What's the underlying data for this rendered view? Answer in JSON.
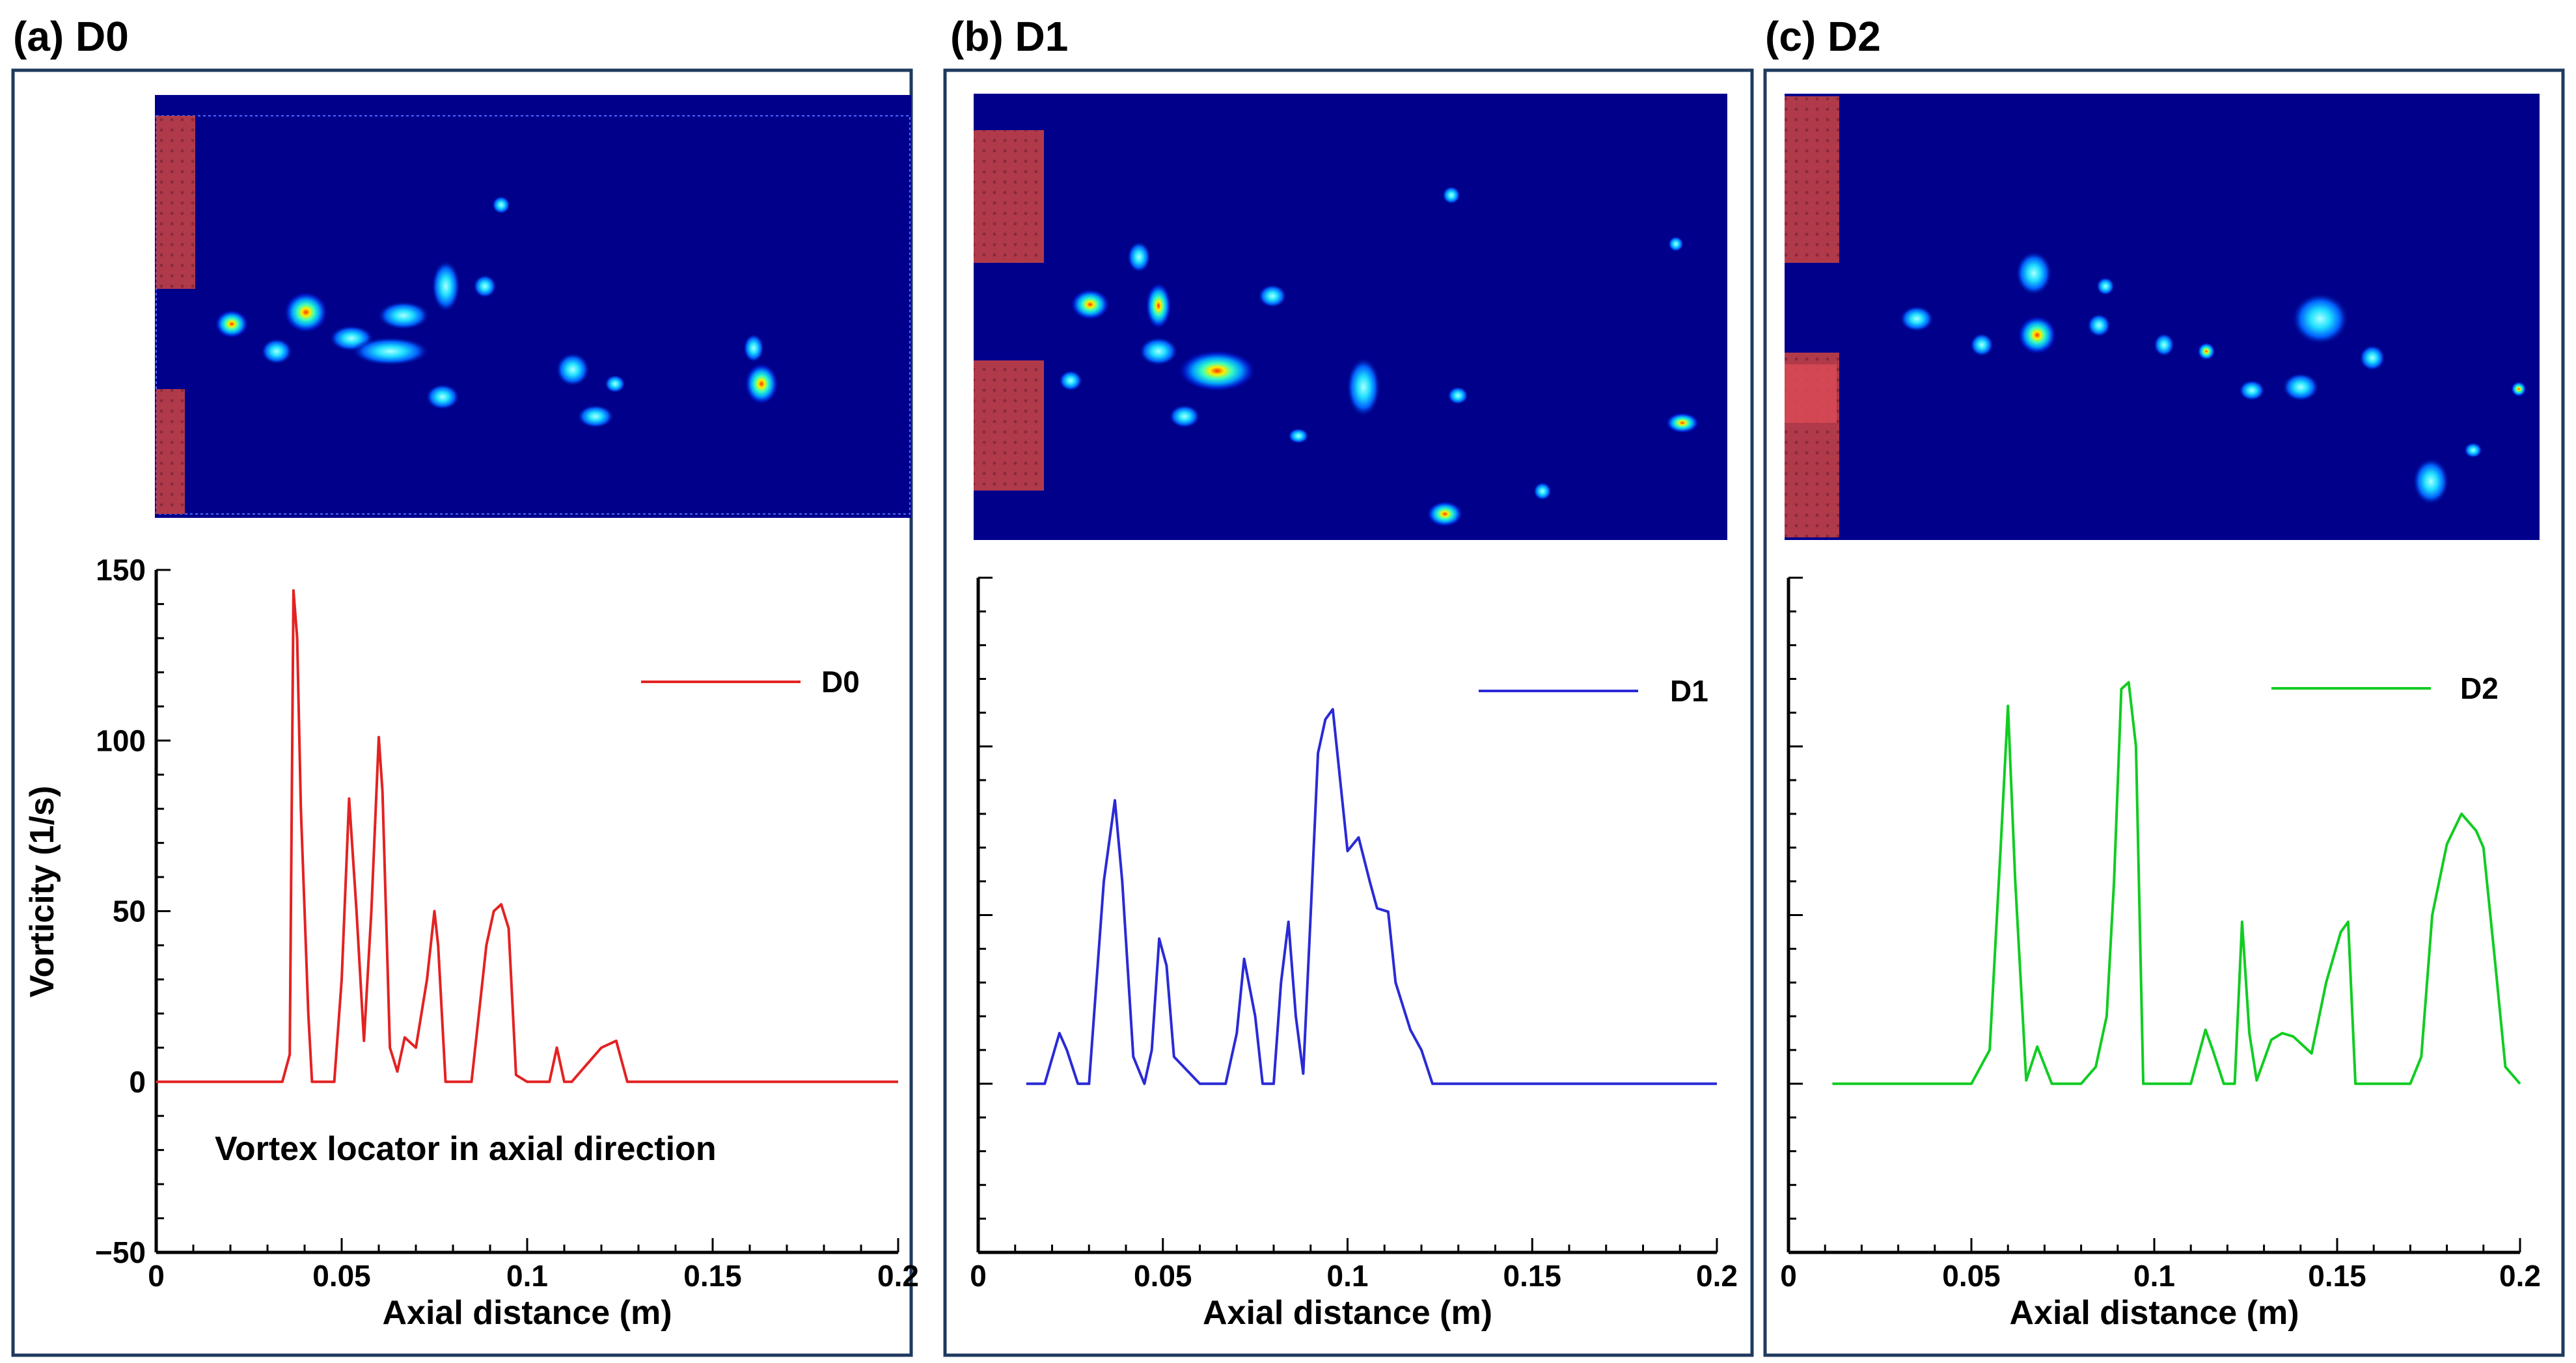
{
  "colors": {
    "frame": "#1f3a5f",
    "field_bg": "#00008b",
    "wall": "#b03a4a",
    "D0": "#e32222",
    "D1": "#2a2ad6",
    "D2": "#11cc22"
  },
  "panels": [
    {
      "label": "(a) D0",
      "heatmap": {
        "type": "heatmap",
        "description_name": "vorticity-contour-D0"
      },
      "chart_data": {
        "type": "line",
        "series": [
          {
            "name": "D0",
            "x": [
              0,
              0.034,
              0.036,
              0.037,
              0.038,
              0.039,
              0.041,
              0.042,
              0.048,
              0.05,
              0.052,
              0.054,
              0.056,
              0.058,
              0.06,
              0.061,
              0.063,
              0.065,
              0.067,
              0.07,
              0.073,
              0.075,
              0.076,
              0.078,
              0.085,
              0.089,
              0.091,
              0.093,
              0.095,
              0.097,
              0.1,
              0.102,
              0.106,
              0.108,
              0.11,
              0.112,
              0.12,
              0.124,
              0.127,
              0.2
            ],
            "values": [
              0,
              0,
              8,
              144,
              130,
              80,
              20,
              0,
              0,
              30,
              83,
              50,
              12,
              50,
              101,
              85,
              10,
              3,
              13,
              10,
              30,
              50,
              40,
              0,
              0,
              40,
              50,
              52,
              45,
              2,
              0,
              0,
              0,
              10,
              0,
              0,
              10,
              12,
              0,
              0
            ]
          }
        ],
        "xlabel": "Axial distance (m)",
        "ylabel": "Vorticity (1/s)",
        "xlim": [
          0,
          0.2
        ],
        "ylim": [
          -50,
          150
        ],
        "xticks": [
          "0",
          "0.05",
          "0.1",
          "0.15",
          "0.2"
        ],
        "yticks": [
          "−50",
          "0",
          "50",
          "100",
          "150"
        ],
        "show_yticklabels": true,
        "legend": "D0",
        "legend_position": "top-right",
        "annotation": "Vortex locator in axial direction"
      }
    },
    {
      "label": "(b) D1",
      "heatmap": {
        "type": "heatmap",
        "description_name": "vorticity-contour-D1"
      },
      "chart_data": {
        "type": "line",
        "series": [
          {
            "name": "D1",
            "x": [
              0.013,
              0.018,
              0.022,
              0.024,
              0.027,
              0.03,
              0.034,
              0.037,
              0.039,
              0.042,
              0.045,
              0.047,
              0.049,
              0.051,
              0.053,
              0.06,
              0.067,
              0.07,
              0.072,
              0.075,
              0.077,
              0.08,
              0.082,
              0.084,
              0.086,
              0.088,
              0.09,
              0.092,
              0.094,
              0.096,
              0.1,
              0.103,
              0.106,
              0.108,
              0.111,
              0.113,
              0.117,
              0.12,
              0.123,
              0.2
            ],
            "values": [
              0,
              0,
              15,
              10,
              0,
              0,
              60,
              84,
              60,
              8,
              0,
              10,
              43,
              35,
              8,
              0,
              0,
              15,
              37,
              20,
              0,
              0,
              30,
              48,
              20,
              3,
              50,
              98,
              108,
              111,
              69,
              73,
              60,
              52,
              51,
              30,
              16,
              10,
              0,
              0
            ]
          }
        ],
        "xlabel": "Axial distance (m)",
        "xlim": [
          0,
          0.2
        ],
        "ylim": [
          -50,
          150
        ],
        "xticks": [
          "0",
          "0.05",
          "0.1",
          "0.15",
          "0.2"
        ],
        "show_yticklabels": false,
        "legend": "D1",
        "legend_position": "top-right"
      }
    },
    {
      "label": "(c) D2",
      "heatmap": {
        "type": "heatmap",
        "description_name": "vorticity-contour-D2"
      },
      "chart_data": {
        "type": "line",
        "series": [
          {
            "name": "D2",
            "x": [
              0.012,
              0.05,
              0.055,
              0.058,
              0.06,
              0.062,
              0.065,
              0.068,
              0.072,
              0.077,
              0.08,
              0.084,
              0.087,
              0.089,
              0.091,
              0.093,
              0.095,
              0.097,
              0.1,
              0.106,
              0.11,
              0.114,
              0.116,
              0.119,
              0.122,
              0.124,
              0.126,
              0.128,
              0.132,
              0.135,
              0.138,
              0.143,
              0.147,
              0.151,
              0.153,
              0.155,
              0.165,
              0.17,
              0.173,
              0.176,
              0.18,
              0.184,
              0.188,
              0.19,
              0.193,
              0.196,
              0.2
            ],
            "values": [
              0,
              0,
              10,
              70,
              112,
              60,
              1,
              11,
              0,
              0,
              0,
              5,
              20,
              60,
              117,
              119,
              100,
              0,
              0,
              0,
              0,
              16,
              10,
              0,
              0,
              48,
              15,
              1,
              13,
              15,
              14,
              9,
              30,
              45,
              48,
              0,
              0,
              0,
              8,
              50,
              71,
              80,
              75,
              70,
              38,
              5,
              0
            ]
          }
        ],
        "xlabel": "Axial distance (m)",
        "xlim": [
          0,
          0.2
        ],
        "ylim": [
          -50,
          150
        ],
        "xticks": [
          "0",
          "0.05",
          "0.1",
          "0.15",
          "0.2"
        ],
        "show_yticklabels": false,
        "legend": "D2",
        "legend_position": "top-right"
      }
    }
  ]
}
